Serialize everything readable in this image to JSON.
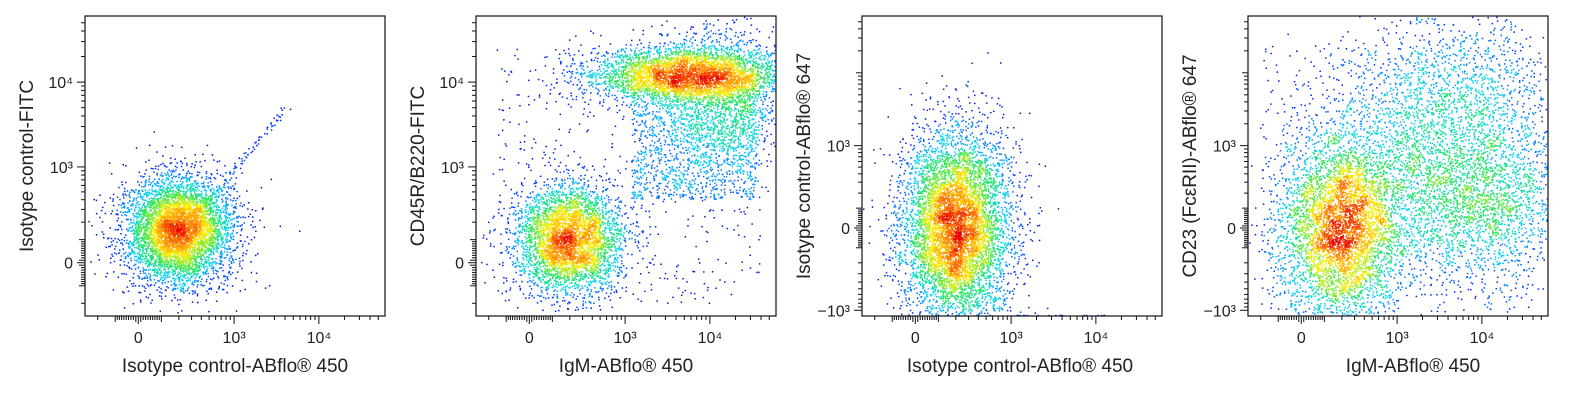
{
  "chart_data": [
    {
      "type": "scatter",
      "style": "density-pseudocolor",
      "xlabel": "Isotype control-ABflo® 450",
      "ylabel": "Isotype control-FITC",
      "xscale": "biexponential",
      "yscale": "biexponential",
      "xlim": [
        -300,
        60000
      ],
      "ylim": [
        -300,
        60000
      ],
      "xticks": [
        {
          "v": 0,
          "label": "0"
        },
        {
          "v": 1000,
          "label": "10³"
        },
        {
          "v": 10000,
          "label": "10⁴"
        }
      ],
      "yticks": [
        {
          "v": 0,
          "label": "0"
        },
        {
          "v": 1000,
          "label": "10³"
        },
        {
          "v": 10000,
          "label": "10⁴"
        }
      ],
      "populations": [
        {
          "kind": "blob",
          "cx": 200,
          "cy": 150,
          "n": 5200,
          "sx": 0.09,
          "sy": 0.09
        },
        {
          "kind": "diag",
          "x0": 400,
          "y0": 300,
          "x1": 4500,
          "y1": 5500,
          "n": 90
        }
      ]
    },
    {
      "type": "scatter",
      "style": "density-pseudocolor",
      "xlabel": "IgM-ABflo® 450",
      "ylabel": "CD45R/B220-FITC",
      "xscale": "biexponential",
      "yscale": "biexponential",
      "xlim": [
        -300,
        60000
      ],
      "ylim": [
        -300,
        60000
      ],
      "xticks": [
        {
          "v": 0,
          "label": "0"
        },
        {
          "v": 1000,
          "label": "10³"
        },
        {
          "v": 10000,
          "label": "10⁴"
        }
      ],
      "yticks": [
        {
          "v": 0,
          "label": "0"
        },
        {
          "v": 1000,
          "label": "10³"
        },
        {
          "v": 10000,
          "label": "10⁴"
        }
      ],
      "populations": [
        {
          "kind": "blob",
          "cx": 200,
          "cy": 100,
          "n": 3800,
          "sx": 0.09,
          "sy": 0.09
        },
        {
          "kind": "blob",
          "cx": 5500,
          "cy": 12500,
          "n": 3400,
          "sx": 0.17,
          "sy": 0.045
        },
        {
          "kind": "blob",
          "cx": 15000,
          "cy": 6000,
          "n": 1200,
          "sx": 0.1,
          "sy": 0.12
        },
        {
          "kind": "uniform",
          "x0": 1200,
          "x1": 35000,
          "y0": 400,
          "y1": 12000,
          "n": 1400
        },
        {
          "kind": "uniform",
          "x0": -150,
          "x1": 40000,
          "y0": -200,
          "y1": 25000,
          "n": 500
        }
      ]
    },
    {
      "type": "scatter",
      "style": "density-pseudocolor",
      "xlabel": "Isotype control-ABflo® 450",
      "ylabel": "Isotype control-ABflo® 647",
      "xscale": "biexponential",
      "yscale": "biexponential",
      "xlim": [
        -300,
        60000
      ],
      "ylim": [
        -1200,
        60000
      ],
      "xticks": [
        {
          "v": 0,
          "label": "0"
        },
        {
          "v": 1000,
          "label": "10³"
        },
        {
          "v": 10000,
          "label": "10⁴"
        }
      ],
      "yticks": [
        {
          "v": -1000,
          "label": "−10³"
        },
        {
          "v": 0,
          "label": "0"
        },
        {
          "v": 1000,
          "label": "10³"
        }
      ],
      "populations": [
        {
          "kind": "blob",
          "cx": 200,
          "cy": 0,
          "n": 6500,
          "sx": 0.09,
          "sy": 0.16
        },
        {
          "kind": "uniform",
          "x0": 400,
          "x1": 1000,
          "y0": -1100,
          "y1": -500,
          "n": 40
        },
        {
          "kind": "floor",
          "x0": 900,
          "x1": 30000,
          "y": -1180,
          "n": 18
        }
      ]
    },
    {
      "type": "scatter",
      "style": "density-pseudocolor",
      "xlabel": "IgM-ABflo® 450",
      "ylabel": "CD23 (FcεRII)-ABflo® 647",
      "xscale": "biexponential",
      "yscale": "biexponential",
      "xlim": [
        -300,
        60000
      ],
      "ylim": [
        -1200,
        60000
      ],
      "xticks": [
        {
          "v": 0,
          "label": "0"
        },
        {
          "v": 1000,
          "label": "10³"
        },
        {
          "v": 10000,
          "label": "10⁴"
        }
      ],
      "yticks": [
        {
          "v": -1000,
          "label": "−10³"
        },
        {
          "v": 0,
          "label": "0"
        },
        {
          "v": 1000,
          "label": "10³"
        }
      ],
      "populations": [
        {
          "kind": "blob",
          "cx": 200,
          "cy": 0,
          "n": 4500,
          "sx": 0.1,
          "sy": 0.15
        },
        {
          "kind": "blob",
          "cx": 4000,
          "cy": 1800,
          "n": 2600,
          "sx": 0.18,
          "sy": 0.2
        },
        {
          "kind": "blob",
          "cx": 9000,
          "cy": 100,
          "n": 1600,
          "sx": 0.17,
          "sy": 0.12
        },
        {
          "kind": "uniform",
          "x0": -200,
          "x1": 40000,
          "y0": -1100,
          "y1": 25000,
          "n": 900
        }
      ]
    }
  ]
}
